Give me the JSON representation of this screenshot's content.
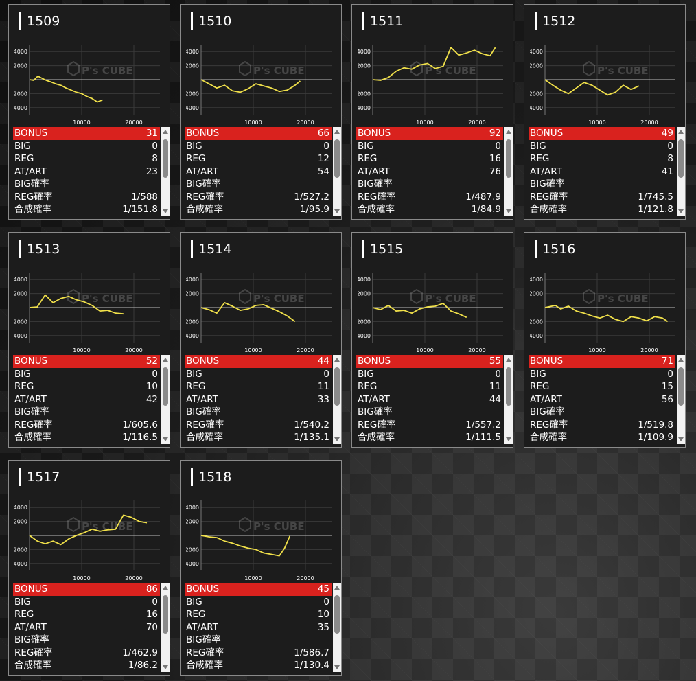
{
  "labels": {
    "bonus": "BONUS",
    "big": "BIG",
    "reg": "REG",
    "at_art": "AT/ART",
    "big_rate": "BIG確率",
    "reg_rate": "REG確率",
    "combined_rate": "合成確率"
  },
  "chart_axis": {
    "y_ticks": [
      "4000",
      "2000",
      "-2000",
      "-4000"
    ],
    "x_ticks": [
      "10000",
      "20000"
    ],
    "ylim": [
      -5000,
      5000
    ],
    "xlim": [
      0,
      25000
    ]
  },
  "watermark": "P's CUBE",
  "colors": {
    "line": "#f0e04a",
    "bonus_bg": "#d9221e",
    "panel_bg": "#1c1c1c"
  },
  "machines": [
    {
      "id": "1509",
      "bonus": "31",
      "big": "0",
      "reg": "8",
      "at_art": "23",
      "big_rate": "",
      "reg_rate": "1/588",
      "combined_rate": "1/151.8",
      "chart_data": {
        "type": "line",
        "x": [
          0,
          800,
          1600,
          2400,
          3200,
          4000,
          5000,
          6000,
          7000,
          8000,
          9000,
          10000,
          11000,
          12000,
          13000,
          14000
        ],
        "y": [
          0,
          -100,
          500,
          200,
          -100,
          -300,
          -600,
          -800,
          -1200,
          -1500,
          -1800,
          -2000,
          -2400,
          -2700,
          -3200,
          -2900
        ]
      }
    },
    {
      "id": "1510",
      "bonus": "66",
      "big": "0",
      "reg": "12",
      "at_art": "54",
      "big_rate": "",
      "reg_rate": "1/527.2",
      "combined_rate": "1/95.9",
      "chart_data": {
        "type": "line",
        "x": [
          0,
          1500,
          3000,
          4500,
          6000,
          7500,
          9000,
          10500,
          12000,
          13500,
          15000,
          16500,
          18000,
          19000
        ],
        "y": [
          0,
          -600,
          -1200,
          -800,
          -1600,
          -1800,
          -1300,
          -600,
          -900,
          -1200,
          -1700,
          -1500,
          -800,
          -200
        ]
      }
    },
    {
      "id": "1511",
      "bonus": "92",
      "big": "0",
      "reg": "16",
      "at_art": "76",
      "big_rate": "",
      "reg_rate": "1/487.9",
      "combined_rate": "1/84.9",
      "chart_data": {
        "type": "line",
        "x": [
          0,
          1500,
          3000,
          4500,
          6000,
          7500,
          9000,
          10500,
          12000,
          13500,
          15000,
          16500,
          18000,
          19500,
          21000,
          22500,
          23500
        ],
        "y": [
          0,
          -100,
          300,
          1200,
          1700,
          1500,
          2100,
          2300,
          1600,
          1900,
          4600,
          3500,
          3800,
          4200,
          3700,
          3400,
          4600
        ]
      }
    },
    {
      "id": "1512",
      "bonus": "49",
      "big": "0",
      "reg": "8",
      "at_art": "41",
      "big_rate": "",
      "reg_rate": "1/745.5",
      "combined_rate": "1/121.8",
      "chart_data": {
        "type": "line",
        "x": [
          0,
          1500,
          3000,
          4500,
          6000,
          7500,
          9000,
          10500,
          12000,
          13500,
          15000,
          16500,
          18000
        ],
        "y": [
          0,
          -800,
          -1500,
          -2000,
          -1200,
          -400,
          -800,
          -1500,
          -2200,
          -1800,
          -800,
          -1400,
          -900
        ]
      }
    },
    {
      "id": "1513",
      "bonus": "52",
      "big": "0",
      "reg": "10",
      "at_art": "42",
      "big_rate": "",
      "reg_rate": "1/605.6",
      "combined_rate": "1/116.5",
      "chart_data": {
        "type": "line",
        "x": [
          0,
          1500,
          3000,
          4500,
          6000,
          7500,
          9000,
          10500,
          12000,
          13500,
          15000,
          16500,
          18000
        ],
        "y": [
          0,
          100,
          1800,
          700,
          1300,
          1600,
          1100,
          800,
          300,
          -500,
          -400,
          -800,
          -900
        ]
      }
    },
    {
      "id": "1514",
      "bonus": "44",
      "big": "0",
      "reg": "11",
      "at_art": "33",
      "big_rate": "",
      "reg_rate": "1/540.2",
      "combined_rate": "1/135.1",
      "chart_data": {
        "type": "line",
        "x": [
          0,
          1500,
          3000,
          4500,
          6000,
          7500,
          9000,
          10500,
          12000,
          13500,
          15000,
          16500,
          18000
        ],
        "y": [
          0,
          -300,
          -800,
          700,
          200,
          -400,
          -200,
          300,
          400,
          -100,
          -600,
          -1200,
          -2000
        ]
      }
    },
    {
      "id": "1515",
      "bonus": "55",
      "big": "0",
      "reg": "11",
      "at_art": "44",
      "big_rate": "",
      "reg_rate": "1/557.2",
      "combined_rate": "1/111.5",
      "chart_data": {
        "type": "line",
        "x": [
          0,
          1500,
          3000,
          4500,
          6000,
          7500,
          9000,
          10500,
          12000,
          13500,
          15000,
          16500,
          18000
        ],
        "y": [
          0,
          -300,
          300,
          -500,
          -400,
          -800,
          -200,
          100,
          200,
          600,
          -500,
          -900,
          -1400
        ]
      }
    },
    {
      "id": "1516",
      "bonus": "71",
      "big": "0",
      "reg": "15",
      "at_art": "56",
      "big_rate": "",
      "reg_rate": "1/519.8",
      "combined_rate": "1/109.9",
      "chart_data": {
        "type": "line",
        "x": [
          0,
          2000,
          3000,
          4500,
          6000,
          7500,
          9000,
          10500,
          12000,
          13500,
          15000,
          16500,
          18000,
          19500,
          21000,
          22500,
          23500
        ],
        "y": [
          0,
          300,
          -200,
          200,
          -500,
          -800,
          -1200,
          -1500,
          -1100,
          -1700,
          -2000,
          -1300,
          -1500,
          -1900,
          -1300,
          -1500,
          -2000
        ]
      }
    },
    {
      "id": "1517",
      "bonus": "86",
      "big": "0",
      "reg": "16",
      "at_art": "70",
      "big_rate": "",
      "reg_rate": "1/462.9",
      "combined_rate": "1/86.2",
      "chart_data": {
        "type": "line",
        "x": [
          0,
          1500,
          3000,
          4500,
          6000,
          7500,
          9000,
          10500,
          12000,
          13500,
          15000,
          16500,
          18000,
          19500,
          21000,
          22500
        ],
        "y": [
          0,
          -800,
          -1200,
          -800,
          -1300,
          -500,
          0,
          400,
          900,
          600,
          800,
          900,
          2900,
          2600,
          2000,
          1800
        ]
      }
    },
    {
      "id": "1518",
      "bonus": "45",
      "big": "0",
      "reg": "10",
      "at_art": "35",
      "big_rate": "",
      "reg_rate": "1/586.7",
      "combined_rate": "1/130.4",
      "chart_data": {
        "type": "line",
        "x": [
          0,
          1500,
          3000,
          4500,
          6000,
          7500,
          9000,
          10500,
          12000,
          13500,
          15000,
          16000,
          17000
        ],
        "y": [
          0,
          -200,
          -300,
          -800,
          -1100,
          -1500,
          -1800,
          -2000,
          -2500,
          -2700,
          -2900,
          -1800,
          -100
        ]
      }
    }
  ]
}
